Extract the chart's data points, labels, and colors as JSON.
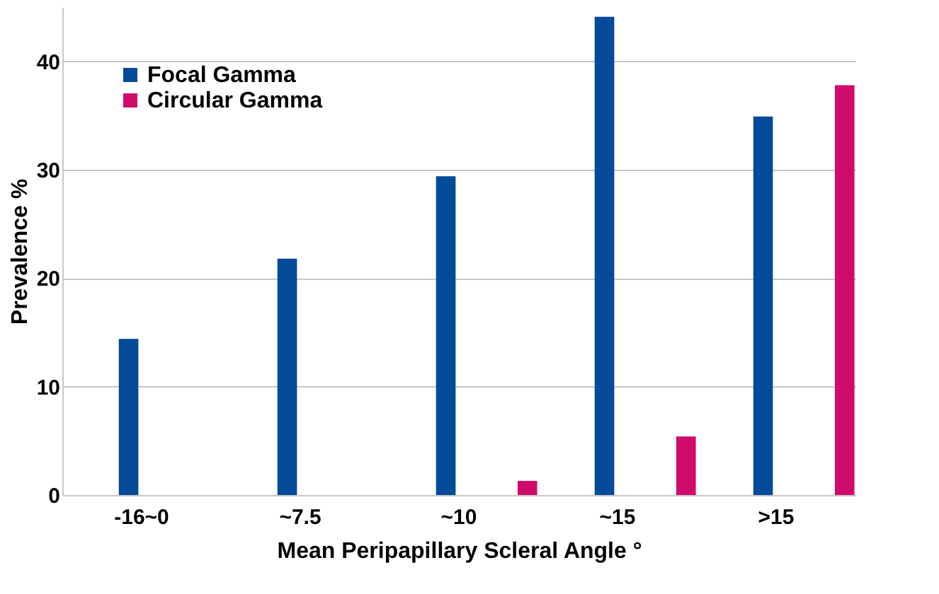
{
  "chart_data": {
    "type": "bar",
    "xlabel": "Mean Peripapillary Scleral Angle °",
    "ylabel": "Prevalence %",
    "categories": [
      "-16~0",
      "~7.5",
      "~10",
      "~15",
      ">15"
    ],
    "series": [
      {
        "name": "Focal Gamma",
        "color": "#034a99",
        "values": [
          14.4,
          21.8,
          29.4,
          44.1,
          34.9
        ]
      },
      {
        "name": "Circular Gamma",
        "color": "#cf0b6b",
        "values": [
          0,
          0,
          1.3,
          5.4,
          37.8
        ]
      }
    ],
    "ylim": [
      0,
      45
    ],
    "yticks": [
      0,
      10,
      20,
      30,
      40
    ],
    "grid": "y",
    "legend": "top left"
  }
}
